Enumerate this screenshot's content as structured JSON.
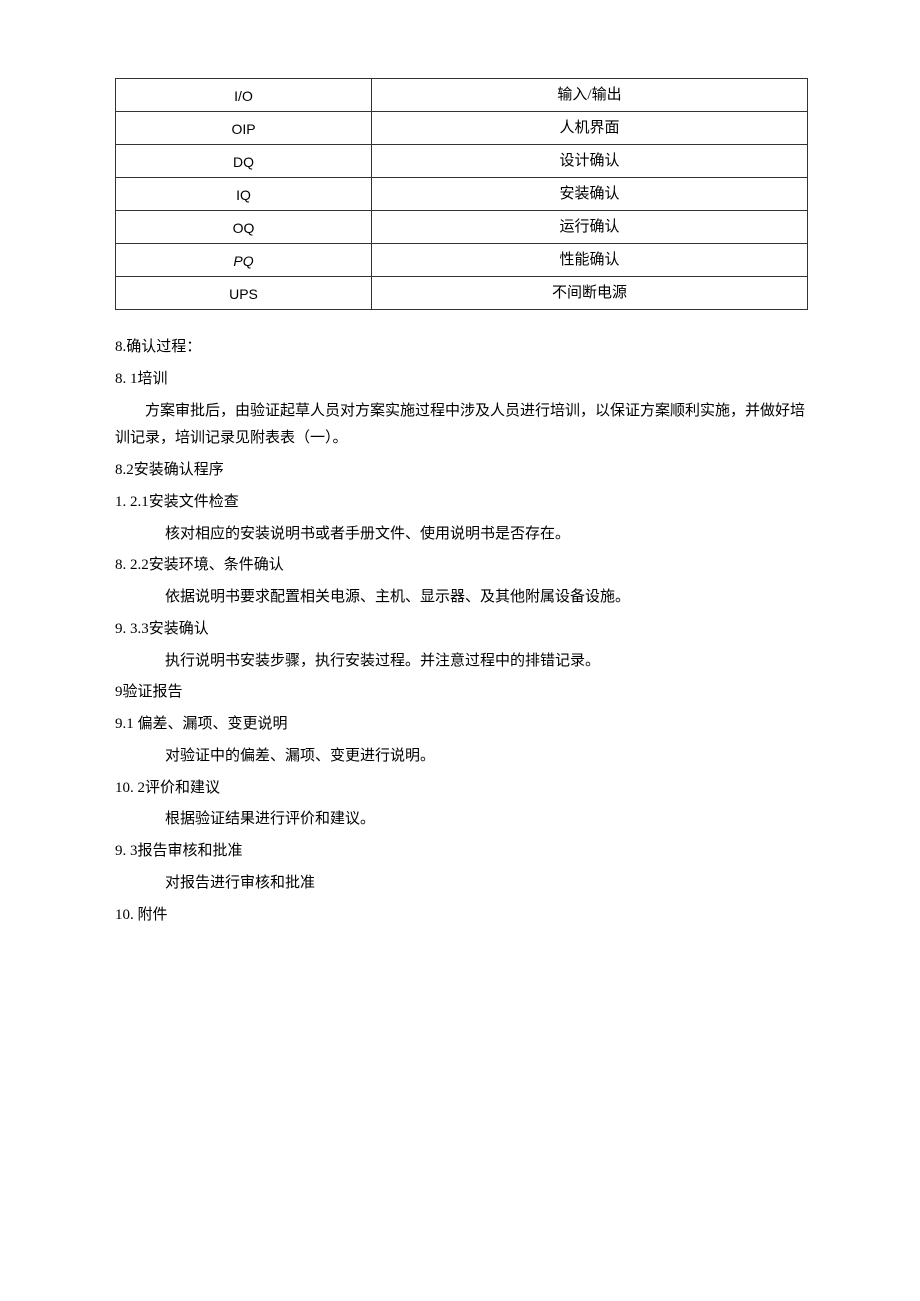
{
  "table": {
    "rows": [
      {
        "left": "I/O",
        "right": "输入/输出",
        "italic": false
      },
      {
        "left": "OIP",
        "right": "人机界面",
        "italic": false
      },
      {
        "left": "DQ",
        "right": "设计确认",
        "italic": false
      },
      {
        "left": "IQ",
        "right": "安装确认",
        "italic": false
      },
      {
        "left": "OQ",
        "right": "运行确认",
        "italic": false
      },
      {
        "left": "PQ",
        "right": "性能确认",
        "italic": true
      },
      {
        "left": "UPS",
        "right": "不间断电源",
        "italic": false
      }
    ]
  },
  "s8_head": "8.确认过程：",
  "s8_1_num": "8.   1培训",
  "s8_1_body": "方案审批后，由验证起草人员对方案实施过程中涉及人员进行培训，以保证方案顺利实施，并做好培训记录，培训记录见附表表（一）。",
  "s8_2_head": "8.2安装确认程序",
  "s8_2_1_num": "1.   2.1安装文件检查",
  "s8_2_1_body": "核对相应的安装说明书或者手册文件、使用说明书是否存在。",
  "s8_2_2_num": "8.   2.2安装环境、条件确认",
  "s8_2_2_body": "依据说明书要求配置相关电源、主机、显示器、及其他附属设备设施。",
  "s8_3_3_num": "9.   3.3安装确认",
  "s8_3_3_body": "执行说明书安装步骤，执行安装过程。并注意过程中的排错记录。",
  "s9_head": "9验证报告",
  "s9_1_num": "9.1   偏差、漏项、变更说明",
  "s9_1_body": "对验证中的偏差、漏项、变更进行说明。",
  "s9_2_num": "10.   2评价和建议",
  "s9_2_body": "根据验证结果进行评价和建议。",
  "s9_3_num": "9.   3报告审核和批准",
  "s9_3_body": "对报告进行审核和批准",
  "s10_num": "10.   附件"
}
